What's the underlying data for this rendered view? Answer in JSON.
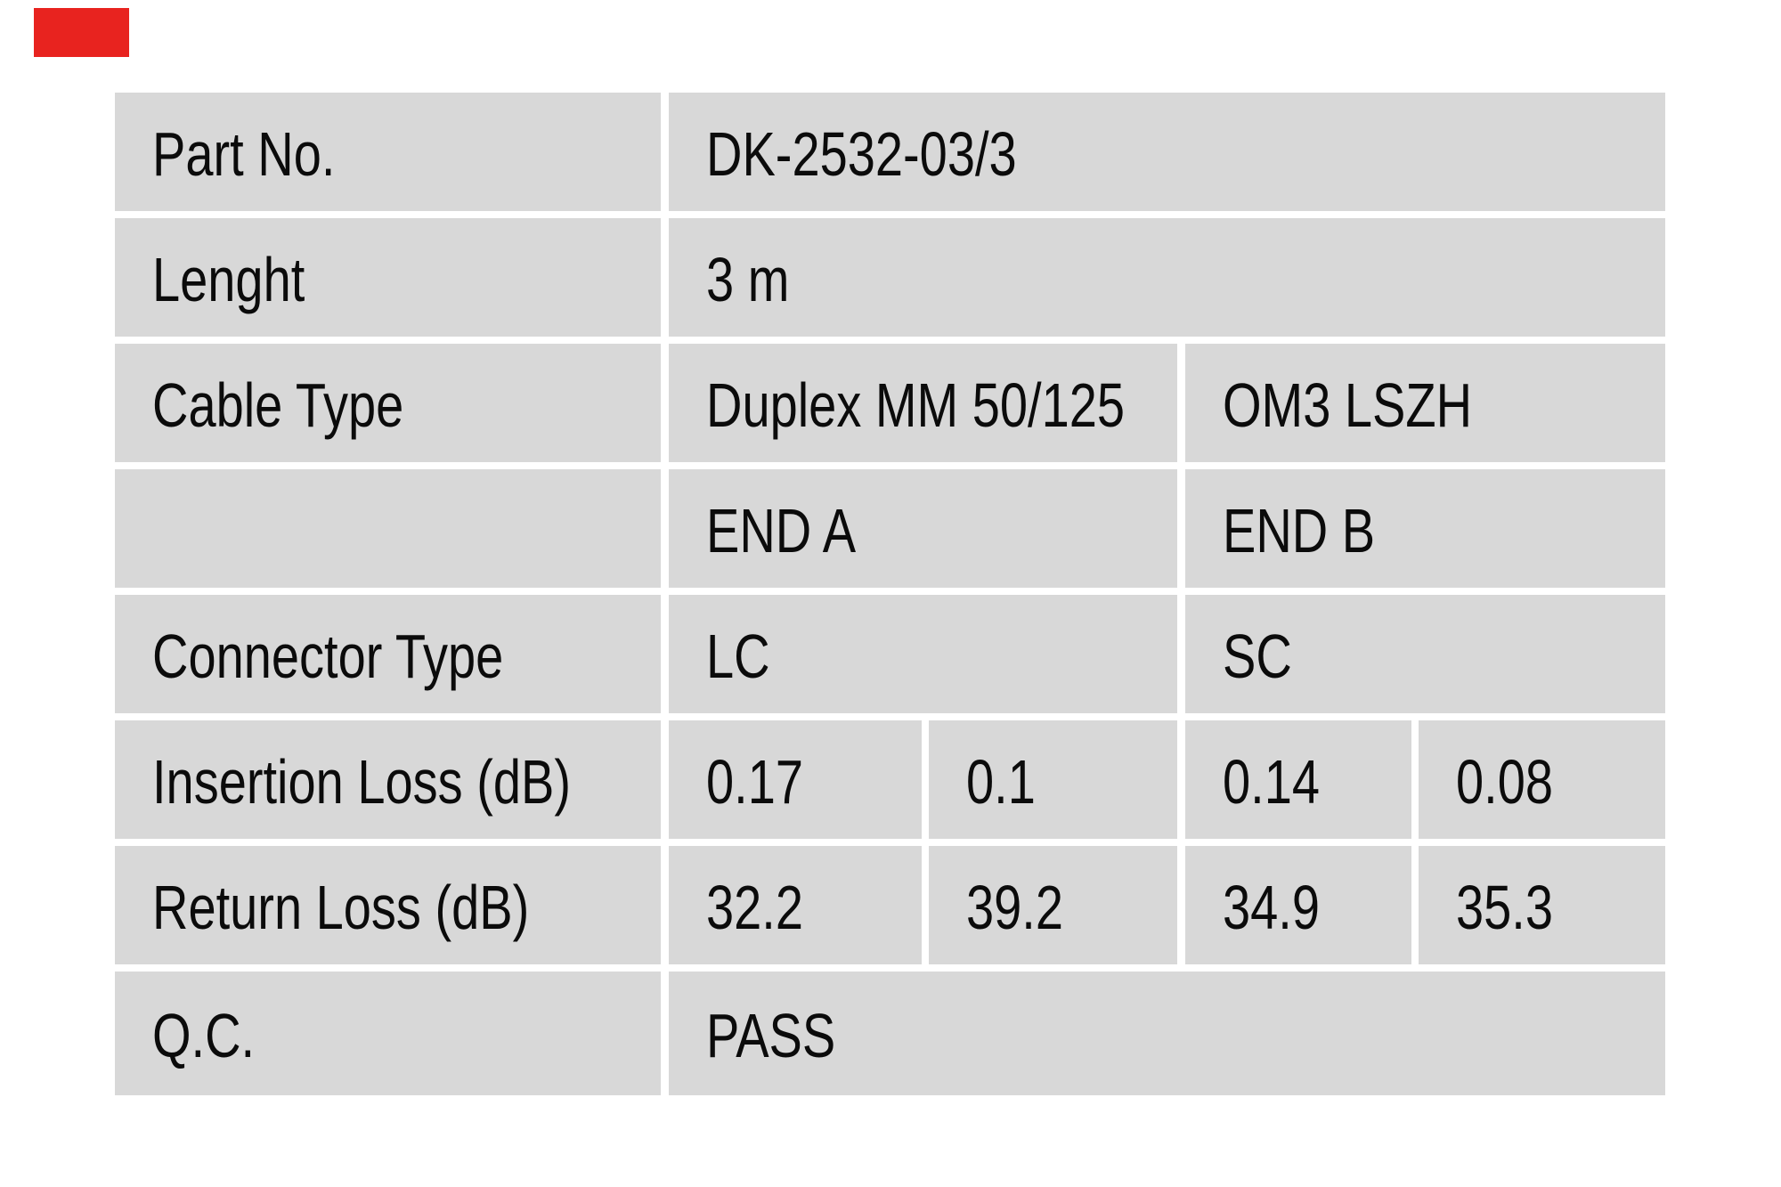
{
  "brand": {
    "color": "#e8231f",
    "name": "red-logo-block"
  },
  "table": {
    "cell_background": "#d8d8d8",
    "text_color": "#0b0b0b",
    "rows": [
      {
        "label": "Part No.",
        "value": "DK-2532-03/3"
      },
      {
        "label": "Lenght",
        "value": "3 m"
      },
      {
        "label": "Cable Type",
        "end_a": "Duplex MM 50/125",
        "end_b": "OM3 LSZH"
      },
      {
        "label": "",
        "end_a": "END A",
        "end_b": "END B"
      },
      {
        "label": "Connector Type",
        "end_a": "LC",
        "end_b": "SC"
      },
      {
        "label": "Insertion Loss (dB)",
        "values": [
          "0.17",
          "0.1",
          "0.14",
          "0.08"
        ]
      },
      {
        "label": "Return Loss (dB)",
        "values": [
          "32.2",
          "39.2",
          "34.9",
          "35.3"
        ]
      },
      {
        "label": "Q.C.",
        "value": "PASS"
      }
    ]
  }
}
